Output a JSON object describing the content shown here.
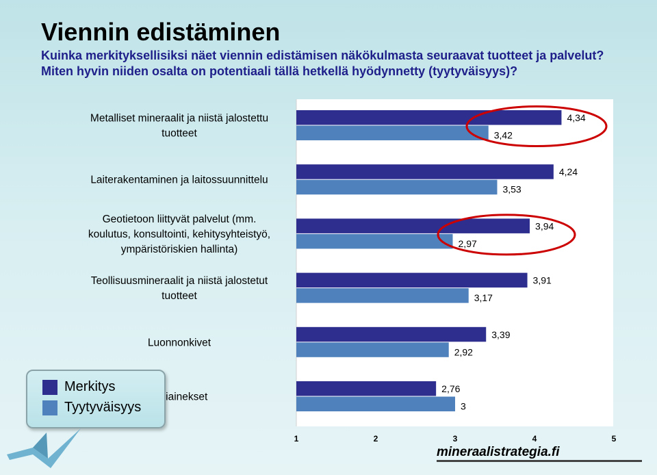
{
  "slide": {
    "title": "Viennin edistäminen",
    "subtitle_line1": "Kuinka merkityksellisiksi näet viennin edistämisen näkökulmasta seuraavat tuotteet ja palvelut?",
    "subtitle_line2": "Miten hyvin niiden osalta on potentiaali tällä hetkellä hyödynnetty (tyytyväisyys)?"
  },
  "legend": {
    "items": [
      "Merkitys",
      "Tyytyväisyys"
    ]
  },
  "footer": {
    "site": "mineraalistrategia.fi"
  },
  "colors": {
    "merkitys": "#2e2e8f",
    "tyytyvaisyys": "#4f81bd",
    "highlight_ellipse": "#cc0000"
  },
  "icons": [
    "logo-bird-icon"
  ],
  "chart_data": {
    "type": "bar",
    "orientation": "horizontal",
    "categories": [
      [
        "Metalliset mineraalit ja niistä jalostettu",
        "tuotteet"
      ],
      [
        "Laiterakentaminen ja laitossuunnittelu"
      ],
      [
        "Geotietoon liittyvät palvelut (mm.",
        "koulutus, konsultointi, kehitysyhteistyö,",
        "ympäristöriskien hallinta)"
      ],
      [
        "Teollisuusmineraalit ja niistä jalostetut",
        "tuotteet"
      ],
      [
        "Luonnonkivet"
      ],
      [
        "Kiviainekset"
      ]
    ],
    "series": [
      {
        "name": "Merkitys",
        "values": [
          4.34,
          4.24,
          3.94,
          3.91,
          3.39,
          2.76
        ],
        "labels": [
          "4,34",
          "4,24",
          "3,94",
          "3,91",
          "3,39",
          "2,76"
        ]
      },
      {
        "name": "Tyytyväisyys",
        "values": [
          3.42,
          3.53,
          2.97,
          3.17,
          2.92,
          3
        ],
        "labels": [
          "3,42",
          "3,53",
          "2,97",
          "3,17",
          "2,92",
          "3"
        ]
      }
    ],
    "xlim": [
      1,
      5
    ],
    "xticks": [
      "1",
      "2",
      "3",
      "4",
      "5"
    ],
    "highlighted_categories": [
      0,
      2
    ],
    "grid": false,
    "legend_position": "bottom-left"
  }
}
